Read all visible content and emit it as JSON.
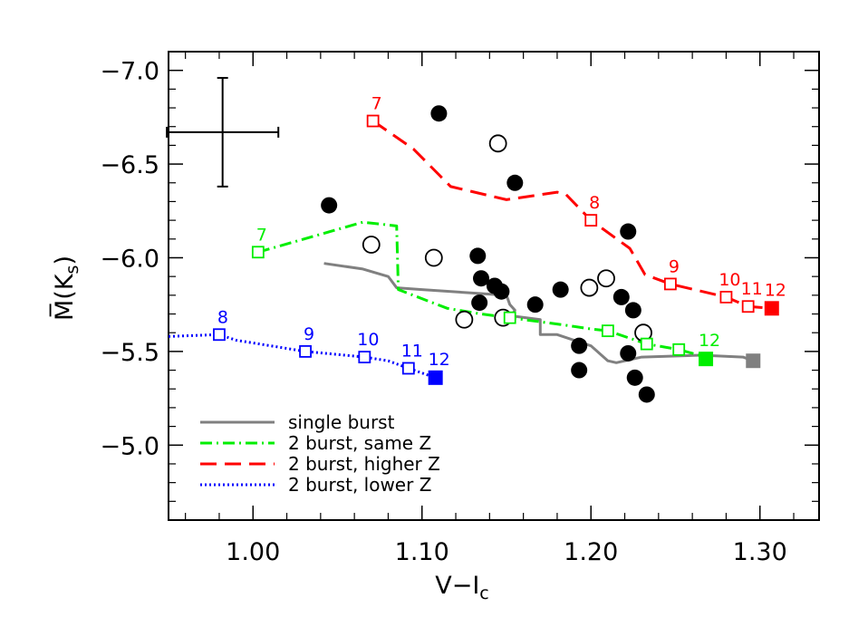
{
  "chart_data": {
    "type": "scatter",
    "xlabel": "V−I",
    "xlabel_sub": "c",
    "ylabel": "M̅(K",
    "ylabel_sub": "s",
    "ylabel_close": ")",
    "xlim": [
      0.95,
      1.335
    ],
    "ylim": [
      -4.6,
      -7.1
    ],
    "y_inverted": true,
    "x_ticks": [
      {
        "value": 1.0,
        "label": "1.00"
      },
      {
        "value": 1.1,
        "label": "1.10"
      },
      {
        "value": 1.2,
        "label": "1.20"
      },
      {
        "value": 1.3,
        "label": "1.30"
      }
    ],
    "y_ticks": [
      {
        "value": -7.0,
        "label": "−7.0"
      },
      {
        "value": -6.5,
        "label": "−6.5"
      },
      {
        "value": -6.0,
        "label": "−6.0"
      },
      {
        "value": -5.5,
        "label": "−5.5"
      },
      {
        "value": -5.0,
        "label": "−5.0"
      }
    ],
    "grid": false,
    "legend_position": "bottom-left",
    "error_bar": {
      "x": 0.982,
      "y": -6.67,
      "xerr": 0.033,
      "yerr": 0.29
    },
    "filled_points": [
      [
        1.045,
        -6.28
      ],
      [
        1.11,
        -6.77
      ],
      [
        1.155,
        -6.4
      ],
      [
        1.222,
        -6.14
      ],
      [
        1.133,
        -6.01
      ],
      [
        1.135,
        -5.89
      ],
      [
        1.143,
        -5.85
      ],
      [
        1.147,
        -5.82
      ],
      [
        1.134,
        -5.76
      ],
      [
        1.167,
        -5.75
      ],
      [
        1.182,
        -5.83
      ],
      [
        1.218,
        -5.79
      ],
      [
        1.225,
        -5.72
      ],
      [
        1.193,
        -5.53
      ],
      [
        1.222,
        -5.49
      ],
      [
        1.193,
        -5.4
      ],
      [
        1.226,
        -5.36
      ],
      [
        1.233,
        -5.27
      ]
    ],
    "open_points": [
      [
        1.145,
        -6.61
      ],
      [
        1.07,
        -6.07
      ],
      [
        1.107,
        -6.0
      ],
      [
        1.209,
        -5.89
      ],
      [
        1.199,
        -5.84
      ],
      [
        1.125,
        -5.67
      ],
      [
        1.148,
        -5.68
      ],
      [
        1.231,
        -5.6
      ]
    ],
    "series": [
      {
        "name": "single burst",
        "color": "#808080",
        "dash": "solid",
        "points": [
          [
            1.042,
            -5.97
          ],
          [
            1.065,
            -5.94
          ],
          [
            1.08,
            -5.9
          ],
          [
            1.085,
            -5.84
          ],
          [
            1.1,
            -5.83
          ],
          [
            1.15,
            -5.8
          ],
          [
            1.152,
            -5.75
          ],
          [
            1.155,
            -5.72
          ],
          [
            1.153,
            -5.69
          ],
          [
            1.17,
            -5.67
          ],
          [
            1.17,
            -5.59
          ],
          [
            1.18,
            -5.59
          ],
          [
            1.2,
            -5.53
          ],
          [
            1.21,
            -5.45
          ],
          [
            1.215,
            -5.44
          ],
          [
            1.23,
            -5.47
          ],
          [
            1.265,
            -5.48
          ],
          [
            1.29,
            -5.47
          ],
          [
            1.296,
            -5.45
          ]
        ],
        "end_marker": {
          "x": 1.296,
          "y": -5.45
        }
      },
      {
        "name": "2 burst, same Z",
        "color": "#00ee00",
        "dash": "dashdot",
        "points": [
          [
            1.003,
            -6.03
          ],
          [
            1.065,
            -6.19
          ],
          [
            1.085,
            -6.17
          ],
          [
            1.086,
            -5.83
          ],
          [
            1.115,
            -5.73
          ],
          [
            1.135,
            -5.7
          ],
          [
            1.152,
            -5.68
          ],
          [
            1.185,
            -5.64
          ],
          [
            1.2,
            -5.62
          ],
          [
            1.21,
            -5.61
          ],
          [
            1.233,
            -5.54
          ],
          [
            1.252,
            -5.51
          ],
          [
            1.268,
            -5.47
          ]
        ],
        "markers": [
          {
            "x": 1.003,
            "y": -6.03,
            "label": "7"
          },
          {
            "x": 1.152,
            "y": -5.68,
            "label": ""
          },
          {
            "x": 1.21,
            "y": -5.61,
            "label": ""
          },
          {
            "x": 1.233,
            "y": -5.54,
            "label": ""
          },
          {
            "x": 1.252,
            "y": -5.51,
            "label": ""
          }
        ],
        "end_marker": {
          "x": 1.268,
          "y": -5.46,
          "label": "12"
        }
      },
      {
        "name": "2 burst, higher Z",
        "color": "#ff0000",
        "dash": "dashed",
        "points": [
          [
            1.071,
            -6.73
          ],
          [
            1.095,
            -6.58
          ],
          [
            1.117,
            -6.38
          ],
          [
            1.15,
            -6.31
          ],
          [
            1.18,
            -6.35
          ],
          [
            1.185,
            -6.34
          ],
          [
            1.2,
            -6.2
          ],
          [
            1.223,
            -6.05
          ],
          [
            1.232,
            -5.91
          ],
          [
            1.247,
            -5.86
          ],
          [
            1.28,
            -5.79
          ],
          [
            1.293,
            -5.74
          ],
          [
            1.307,
            -5.73
          ]
        ],
        "markers": [
          {
            "x": 1.071,
            "y": -6.73,
            "label": "7"
          },
          {
            "x": 1.2,
            "y": -6.2,
            "label": "8"
          },
          {
            "x": 1.247,
            "y": -5.86,
            "label": "9"
          },
          {
            "x": 1.28,
            "y": -5.79,
            "label": "10"
          },
          {
            "x": 1.293,
            "y": -5.74,
            "label": "11"
          }
        ],
        "end_marker": {
          "x": 1.307,
          "y": -5.73,
          "label": "12"
        }
      },
      {
        "name": "2 burst, lower Z",
        "color": "#0000ff",
        "dash": "dotted",
        "points": [
          [
            0.95,
            -5.58
          ],
          [
            0.98,
            -5.59
          ],
          [
            0.99,
            -5.56
          ],
          [
            1.031,
            -5.5
          ],
          [
            1.066,
            -5.47
          ],
          [
            1.08,
            -5.45
          ],
          [
            1.092,
            -5.41
          ],
          [
            1.108,
            -5.36
          ]
        ],
        "markers": [
          {
            "x": 0.98,
            "y": -5.59,
            "label": "8"
          },
          {
            "x": 1.031,
            "y": -5.5,
            "label": "9"
          },
          {
            "x": 1.066,
            "y": -5.47,
            "label": "10"
          },
          {
            "x": 1.092,
            "y": -5.41,
            "label": "11"
          }
        ],
        "end_marker": {
          "x": 1.108,
          "y": -5.36,
          "label": "12"
        }
      }
    ]
  }
}
